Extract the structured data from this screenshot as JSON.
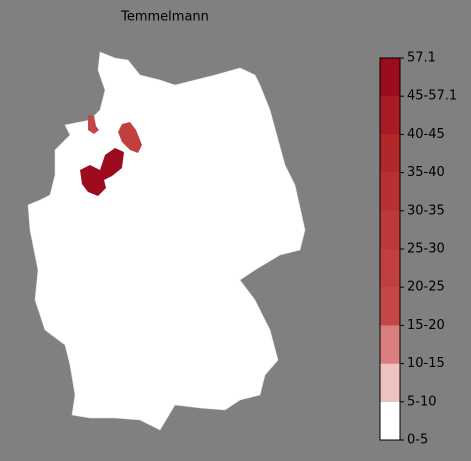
{
  "title": "Temmelmann",
  "legend": {
    "labels": [
      "0-5",
      "5-10",
      "10-15",
      "15-20",
      "20-25",
      "25-30",
      "30-35",
      "35-40",
      "40-45",
      "45-57.1",
      "57.1"
    ],
    "colors": [
      "#ffffff",
      "#efc2c2",
      "#da7f7f",
      "#c54646",
      "#c23f3f",
      "#bd3838",
      "#b83030",
      "#b22828",
      "#a91a24",
      "#9c0c1e"
    ]
  }
}
